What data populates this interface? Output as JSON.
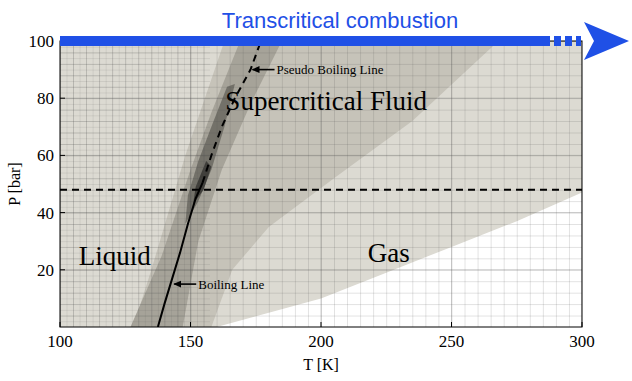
{
  "chart_data": {
    "type": "line",
    "title": "Transcritical combustion",
    "color": "#1f50e6",
    "xlabel": "T [K]",
    "ylabel": "P [bar]",
    "xlim": [
      100,
      300
    ],
    "ylim": [
      0,
      100
    ],
    "xticks": [
      100,
      150,
      200,
      250,
      300
    ],
    "yticks": [
      20,
      40,
      60,
      80,
      100
    ],
    "grid": true,
    "series": [
      {
        "type": "area",
        "color": "#dcdad2",
        "x": [
          100,
          300,
          300,
          100
        ],
        "values": [
          0,
          0,
          100,
          100
        ]
      },
      {
        "type": "area",
        "color": "#ffffff",
        "x": [
          160,
          180,
          200,
          225,
          250,
          275,
          300,
          300
        ],
        "values": [
          0,
          5,
          10,
          19,
          28,
          37,
          47,
          0
        ]
      },
      {
        "type": "area",
        "color": "#c6c3b9",
        "x": [
          128,
          158,
          166,
          180,
          205,
          235,
          268,
          163,
          148,
          135
        ],
        "values": [
          0,
          0,
          20,
          35,
          52,
          72,
          100,
          100,
          60,
          20
        ]
      },
      {
        "type": "area",
        "color": "#a6a399",
        "x": [
          127,
          147,
          153,
          162,
          173,
          185,
          169,
          158,
          150,
          139
        ],
        "values": [
          0,
          0,
          30,
          55,
          78,
          100,
          100,
          75,
          55,
          25
        ]
      },
      {
        "type": "area",
        "color": "#737169",
        "x": [
          148,
          153,
          158,
          163,
          167,
          164,
          158,
          153,
          149
        ],
        "values": [
          36,
          44,
          55,
          70,
          85,
          84,
          70,
          58,
          46
        ]
      },
      {
        "type": "area",
        "color": "#3f3e3a",
        "x": [
          151,
          155,
          158,
          156,
          152
        ],
        "values": [
          43,
          48,
          56,
          58,
          49
        ]
      },
      {
        "type": "line",
        "color": "#000000",
        "line_style": "solid",
        "x": [
          137.5,
          140,
          143,
          146,
          149,
          152,
          154.6
        ],
        "values": [
          0,
          8,
          17,
          26,
          36,
          45,
          50.4
        ]
      },
      {
        "type": "line",
        "color": "#000000",
        "line_style": "dashed",
        "x": [
          154.6,
          158,
          162,
          167,
          173,
          177
        ],
        "values": [
          50.4,
          60,
          70,
          80,
          90,
          100
        ]
      },
      {
        "type": "line",
        "color": "#000000",
        "line_style": "dashed",
        "x": [
          100,
          300
        ],
        "values": [
          48,
          48
        ]
      }
    ],
    "region_labels": [
      {
        "text": "Liquid",
        "x": 121,
        "y": 25
      },
      {
        "text": "Gas",
        "x": 226,
        "y": 26
      },
      {
        "text": "Supercritical Fluid",
        "x": 202,
        "y": 79
      }
    ],
    "annotations": [
      {
        "text": "Pseudo Boiling Line",
        "x": 173,
        "y": 90
      },
      {
        "text": "Boiling Line",
        "x": 143,
        "y": 15
      }
    ]
  }
}
